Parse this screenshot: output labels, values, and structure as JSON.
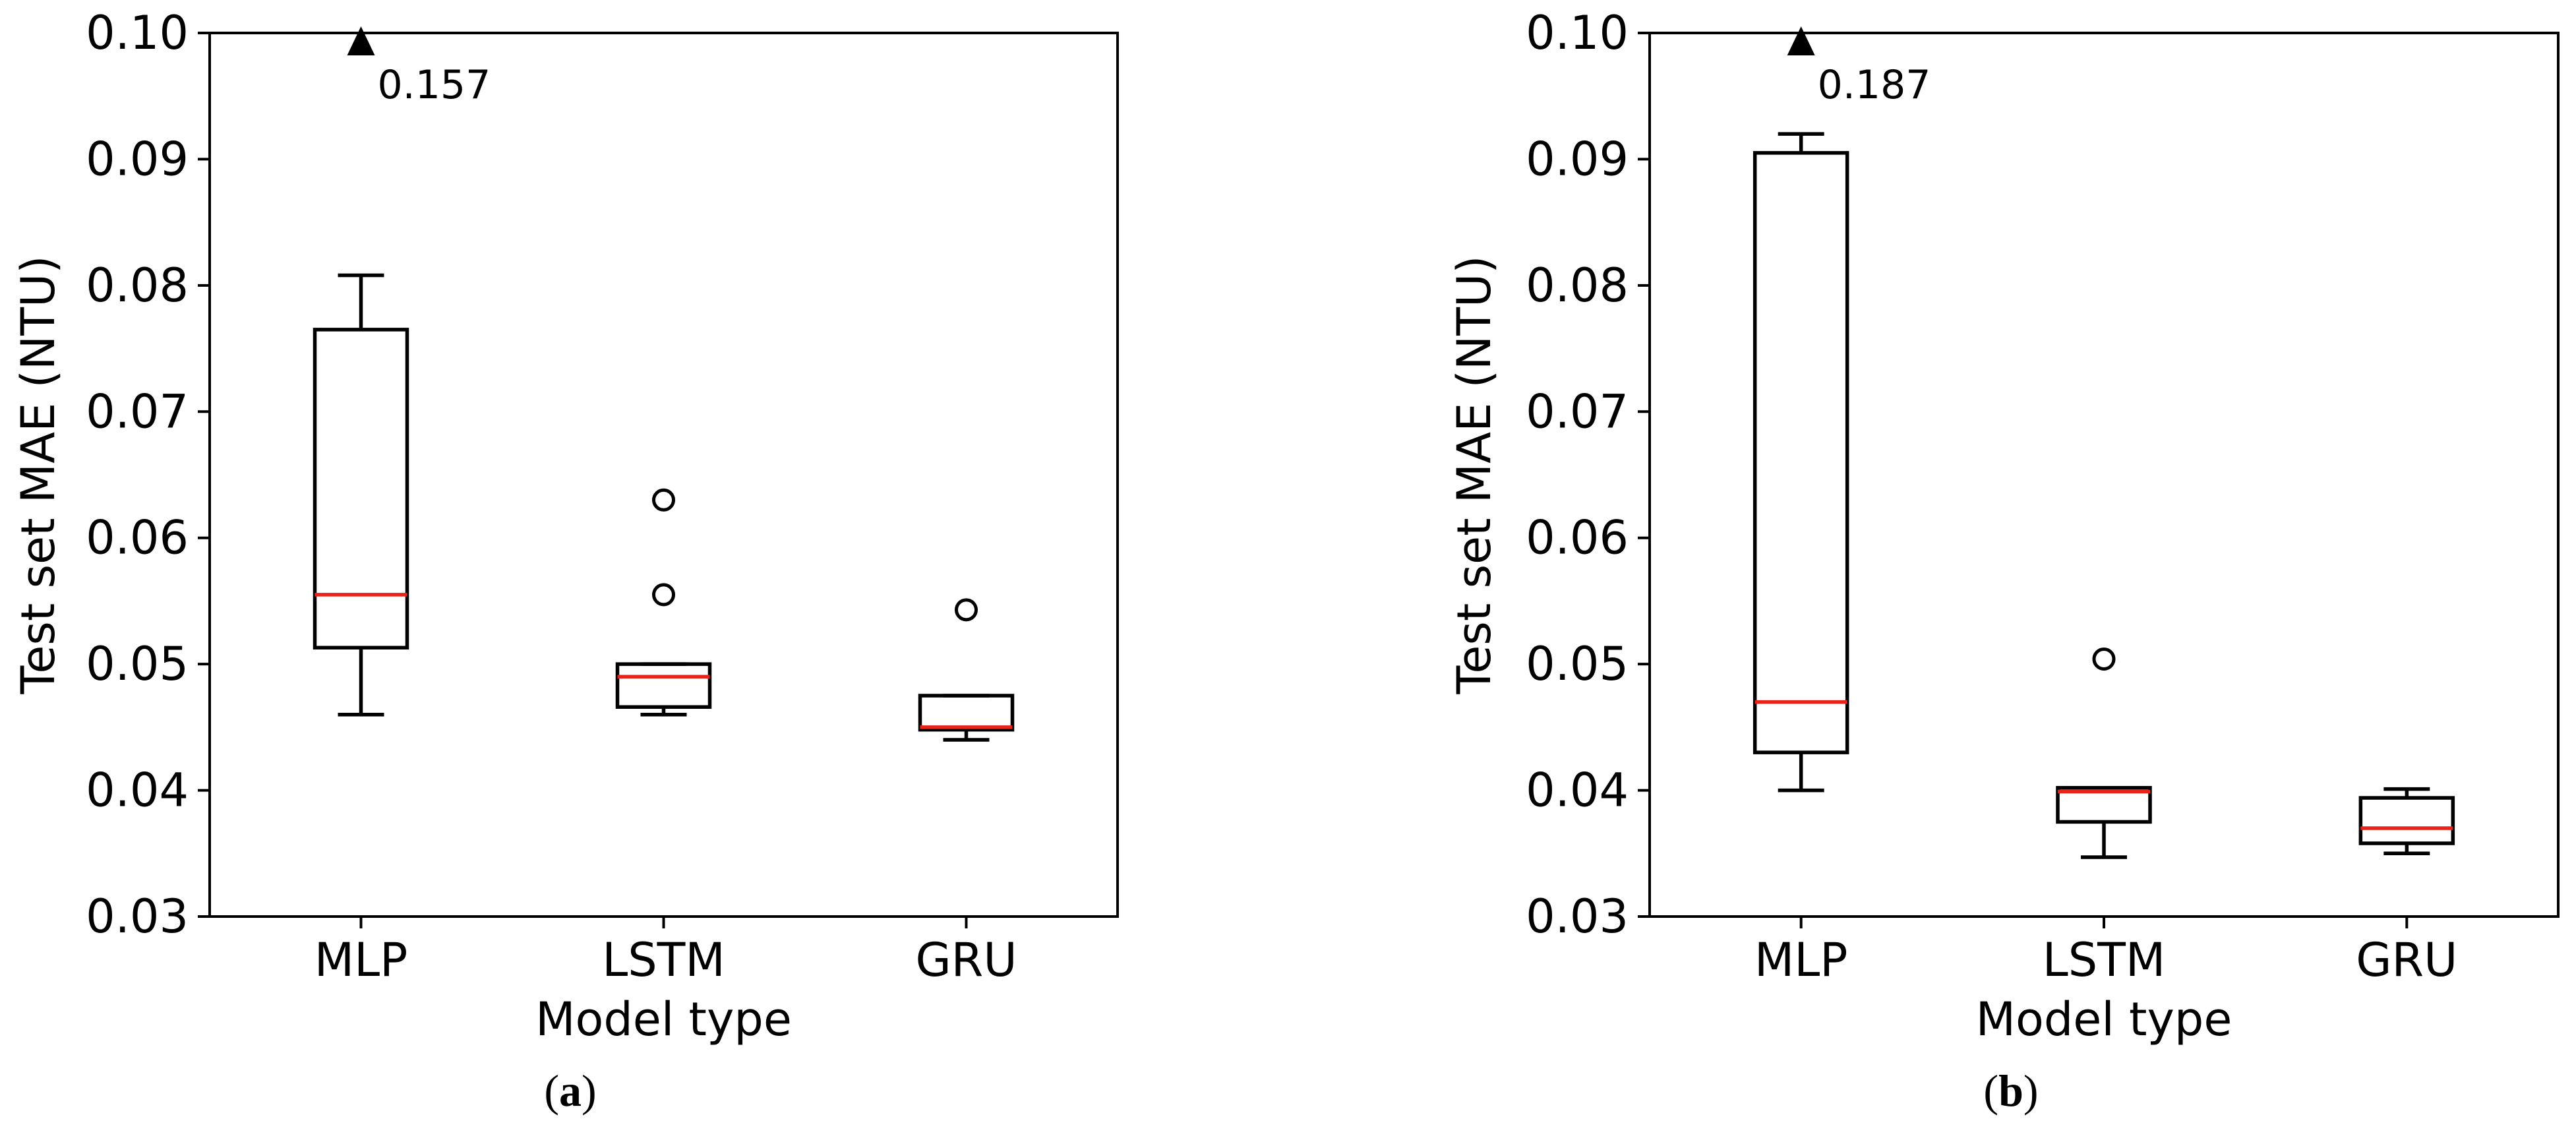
{
  "chart_data": [
    {
      "type": "box",
      "panel_label": "a",
      "xlabel": "Model type",
      "ylabel": "Test set MAE (NTU)",
      "ylim": [
        0.03,
        0.1
      ],
      "yticks": [
        "0.03",
        "0.04",
        "0.05",
        "0.06",
        "0.07",
        "0.08",
        "0.09",
        "0.10"
      ],
      "categories": [
        "MLP",
        "LSTM",
        "GRU"
      ],
      "boxes": [
        {
          "category": "MLP",
          "whisker_low": 0.046,
          "q1": 0.0513,
          "median": 0.0555,
          "q3": 0.0765,
          "whisker_high": 0.0808,
          "outliers": [],
          "offscale_value": 0.157,
          "offscale_label": "0.157"
        },
        {
          "category": "LSTM",
          "whisker_low": 0.046,
          "q1": 0.0466,
          "median": 0.049,
          "q3": 0.05,
          "whisker_high": 0.05,
          "outliers": [
            0.0555,
            0.063
          ]
        },
        {
          "category": "GRU",
          "whisker_low": 0.044,
          "q1": 0.0448,
          "median": 0.045,
          "q3": 0.0475,
          "whisker_high": 0.0475,
          "outliers": [
            0.0543
          ]
        }
      ],
      "colors": {
        "box": "#000000",
        "median": "#e8231a"
      }
    },
    {
      "type": "box",
      "panel_label": "b",
      "xlabel": "Model type",
      "ylabel": "Test set MAE (NTU)",
      "ylim": [
        0.03,
        0.1
      ],
      "yticks": [
        "0.03",
        "0.04",
        "0.05",
        "0.06",
        "0.07",
        "0.08",
        "0.09",
        "0.10"
      ],
      "categories": [
        "MLP",
        "LSTM",
        "GRU"
      ],
      "boxes": [
        {
          "category": "MLP",
          "whisker_low": 0.04,
          "q1": 0.043,
          "median": 0.047,
          "q3": 0.0905,
          "whisker_high": 0.092,
          "outliers": [],
          "offscale_value": 0.187,
          "offscale_label": "0.187"
        },
        {
          "category": "LSTM",
          "whisker_low": 0.0347,
          "q1": 0.0375,
          "median": 0.0399,
          "q3": 0.0402,
          "whisker_high": 0.0402,
          "outliers": [
            0.0504
          ]
        },
        {
          "category": "GRU",
          "whisker_low": 0.035,
          "q1": 0.0358,
          "median": 0.037,
          "q3": 0.0394,
          "whisker_high": 0.0401,
          "outliers": []
        }
      ],
      "colors": {
        "box": "#000000",
        "median": "#e8231a"
      }
    }
  ]
}
